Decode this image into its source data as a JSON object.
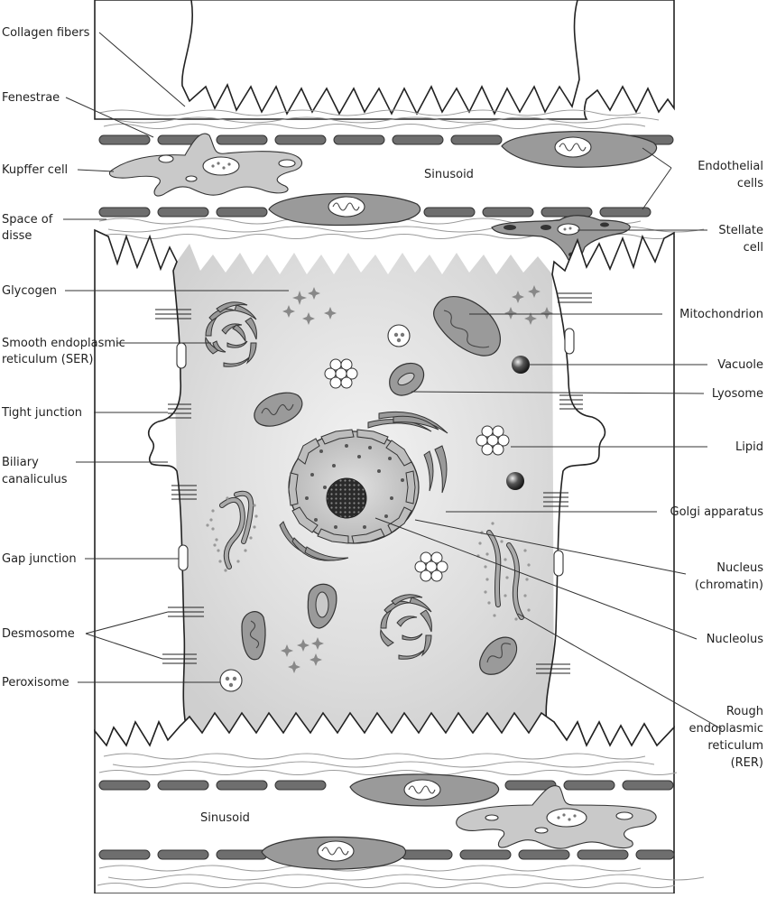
{
  "labels": {
    "collagen_fibers": "Collagen fibers",
    "fenestrae": "Fenestrae",
    "kupffer_cell": "Kupffer cell",
    "space_of_disse_1": "Space of",
    "space_of_disse_2": "disse",
    "glycogen": "Glycogen",
    "ser_1": "Smooth endoplasmic",
    "ser_2": "reticulum (SER)",
    "tight_junction": "Tight junction",
    "biliary_1": "Biliary",
    "biliary_2": "canaliculus",
    "gap_junction": "Gap junction",
    "desmosome": "Desmosome",
    "peroxisome": "Peroxisome",
    "sinusoid_top": "Sinusoid",
    "sinusoid_bottom": "Sinusoid",
    "endothelial_1": "Endothelial",
    "endothelial_2": "cells",
    "stellate_1": "Stellate",
    "stellate_2": "cell",
    "mitochondrion": "Mitochondrion",
    "vacuole": "Vacuole",
    "lyosome": "Lyosome",
    "lipid": "Lipid",
    "golgi": "Golgi apparatus",
    "nucleus_1": "Nucleus",
    "nucleus_2": "(chromatin)",
    "nucleolus": "Nucleolus",
    "rer_1": "Rough",
    "rer_2": "endoplasmic",
    "rer_3": "reticulum",
    "rer_4": "(RER)"
  }
}
